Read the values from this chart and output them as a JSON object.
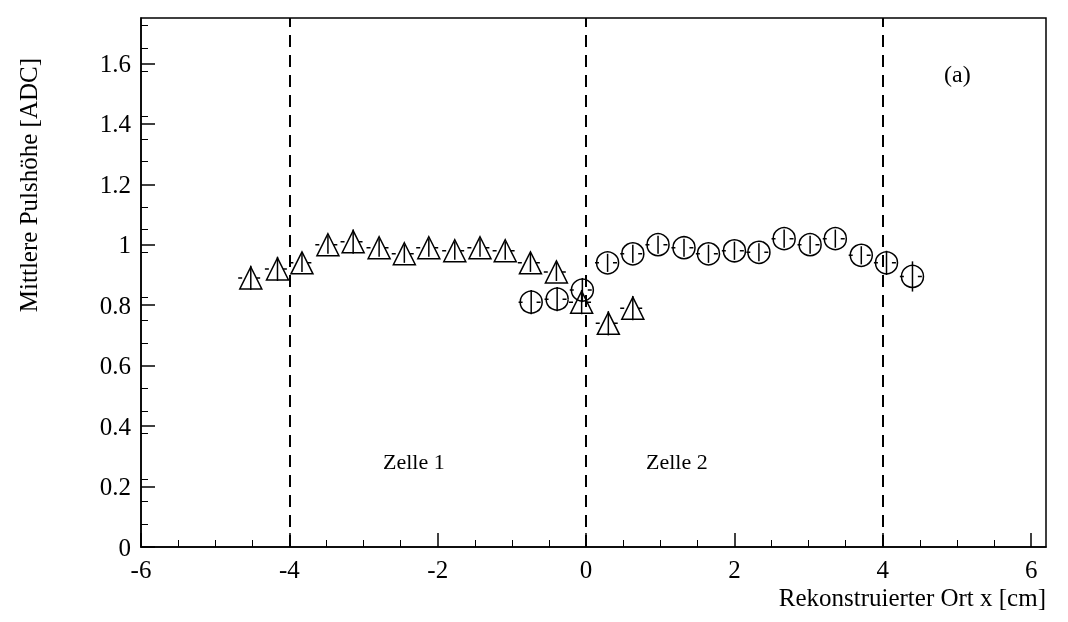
{
  "chart_data": {
    "type": "scatter",
    "xlabel": "Rekonstruierter Ort x [cm]",
    "ylabel": "Mittlere Pulshöhe [ADC]",
    "xlim": [
      -6,
      6.2
    ],
    "xticks": [
      -6,
      -4,
      -2,
      0,
      2,
      4,
      6
    ],
    "ylim": [
      0,
      1.75
    ],
    "yticks": [
      0,
      0.2,
      0.4,
      0.6,
      0.8,
      1,
      1.2,
      1.4,
      1.6
    ],
    "grid": false,
    "series": [
      {
        "color": "#000000",
        "marker": "triangle",
        "x": [
          -4.52,
          -4.16,
          -3.83,
          -3.48,
          -3.14,
          -2.79,
          -2.45,
          -2.12,
          -1.77,
          -1.43,
          -1.09,
          -0.75,
          -0.4,
          -0.06,
          0.3,
          0.63
        ],
        "values": [
          0.89,
          0.92,
          0.94,
          1.0,
          1.01,
          0.99,
          0.97,
          0.99,
          0.98,
          0.99,
          0.98,
          0.94,
          0.91,
          0.81,
          0.74,
          0.79
        ],
        "errors": [
          0.04,
          0.04,
          0.03,
          0.03,
          0.04,
          0.03,
          0.03,
          0.03,
          0.03,
          0.03,
          0.03,
          0.03,
          0.03,
          0.04,
          0.04,
          0.04
        ],
        "xerrors": [
          0.17,
          0.17,
          0.17,
          0.17,
          0.17,
          0.17,
          0.17,
          0.17,
          0.17,
          0.17,
          0.17,
          0.17,
          0.17,
          0.17,
          0.17,
          0.17
        ]
      },
      {
        "color": "#000000",
        "marker": "circle",
        "x": [
          -0.74,
          -0.39,
          -0.05,
          0.29,
          0.63,
          0.97,
          1.32,
          1.65,
          2.0,
          2.33,
          2.67,
          3.02,
          3.36,
          3.71,
          4.05,
          4.4
        ],
        "values": [
          0.81,
          0.82,
          0.85,
          0.94,
          0.97,
          1.0,
          0.99,
          0.97,
          0.98,
          0.975,
          1.02,
          1.0,
          1.02,
          0.965,
          0.94,
          0.895
        ],
        "errors": [
          0.04,
          0.04,
          0.04,
          0.03,
          0.03,
          0.03,
          0.03,
          0.03,
          0.03,
          0.03,
          0.03,
          0.03,
          0.03,
          0.03,
          0.04,
          0.05
        ],
        "xerrors": [
          0.17,
          0.17,
          0.17,
          0.17,
          0.17,
          0.17,
          0.17,
          0.17,
          0.17,
          0.17,
          0.17,
          0.17,
          0.17,
          0.17,
          0.17,
          0.17
        ]
      }
    ],
    "ref_lines": [
      {
        "axis": "x",
        "value": -4,
        "color": "#000000",
        "line_style": "dashed"
      },
      {
        "axis": "x",
        "value": 0,
        "color": "#000000",
        "line_style": "dashed"
      },
      {
        "axis": "x",
        "value": 4,
        "color": "#000000",
        "line_style": "dashed"
      }
    ],
    "annotations": [
      "Zelle 1",
      "Zelle 2",
      "(a)"
    ]
  }
}
